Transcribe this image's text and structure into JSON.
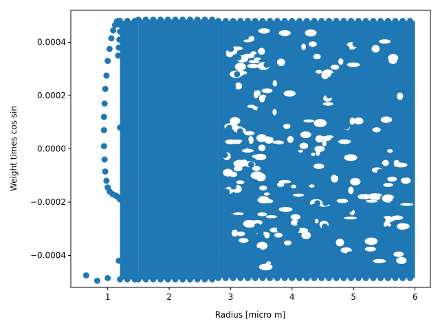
{
  "chart_data": {
    "type": "scatter",
    "title": "",
    "xlabel": "Radius [micro m]",
    "ylabel": "Weight times  cos  sin",
    "xlim": [
      0.4,
      6.25
    ],
    "ylim": [
      -0.00052,
      0.00052
    ],
    "xticks": [
      1,
      2,
      3,
      4,
      5,
      6
    ],
    "xtick_labels": [
      "1",
      "2",
      "3",
      "4",
      "5",
      "6"
    ],
    "yticks": [
      -0.0004,
      -0.0002,
      0.0,
      0.0002,
      0.0004
    ],
    "ytick_labels": [
      "−0.0004",
      "−0.0002",
      "0.0000",
      "0.0002",
      "0.0004"
    ],
    "grid": false,
    "marker_color": "#1f77b4",
    "series": [
      {
        "name": "",
        "x": [
          0.65,
          0.83,
          1.0,
          1.18,
          1.3,
          1.2,
          1.16,
          1.13,
          1.08,
          1.03,
          1.0,
          0.98,
          0.96,
          0.95,
          0.94,
          0.94,
          0.94,
          0.95,
          0.96,
          0.98,
          1.0,
          1.03,
          1.06,
          1.09,
          1.12,
          1.15,
          1.17,
          1.19,
          1.2,
          1.2,
          1.19,
          1.18,
          1.17,
          1.2,
          1.25,
          1.3,
          1.35,
          1.4
        ],
        "y": [
          -0.000475,
          -0.000495,
          -0.000485,
          -0.00042,
          -0.0004,
          -0.00019,
          -0.00018,
          -0.000175,
          -0.00017,
          -0.00016,
          -0.000145,
          -0.00012,
          -8.5e-05,
          -4e-05,
          1e-05,
          7e-05,
          0.00012,
          0.00017,
          0.000225,
          0.000275,
          0.00033,
          0.000375,
          0.000415,
          0.000445,
          0.000465,
          0.000478,
          0.00048,
          0.000475,
          0.000465,
          0.00044,
          0.00041,
          0.00038,
          0.00035,
          8e-05,
          -3e-05,
          -0.00015,
          -0.0003,
          -0.00045
        ]
      }
    ],
    "dense_regions": [
      {
        "x": [
          1.2,
          1.5
        ],
        "y": [
          -0.00049,
          0.00048
        ]
      },
      {
        "x": [
          1.5,
          2.8
        ],
        "y": [
          -0.00049,
          0.000485
        ]
      },
      {
        "x": [
          2.8,
          6.0
        ],
        "y": [
          -0.000485,
          0.00048
        ]
      }
    ]
  }
}
